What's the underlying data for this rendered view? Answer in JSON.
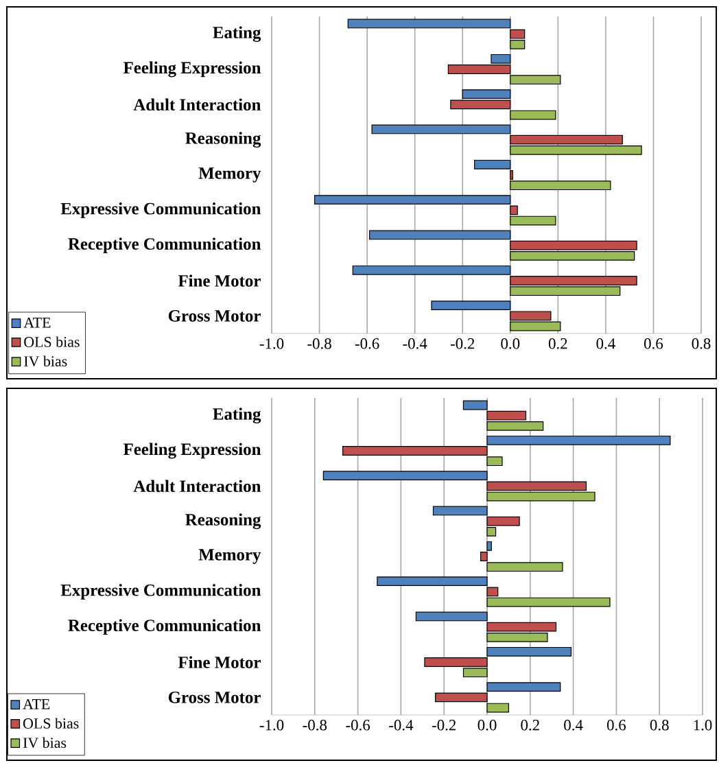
{
  "chart_data": [
    {
      "type": "bar",
      "orientation": "horizontal",
      "categories": [
        "Eating",
        "Feeling Expression",
        "Adult Interaction",
        "Reasoning",
        "Memory",
        "Expressive Communication",
        "Receptive Communication",
        "Fine Motor",
        "Gross Motor"
      ],
      "series": [
        {
          "name": "ATE",
          "color": "#4f81bd",
          "values": [
            -0.68,
            -0.08,
            -0.2,
            -0.58,
            -0.15,
            -0.82,
            -0.59,
            -0.66,
            -0.33
          ]
        },
        {
          "name": "OLS bias",
          "color": "#c0504d",
          "values": [
            0.06,
            -0.26,
            -0.25,
            0.47,
            0.01,
            0.03,
            0.53,
            0.53,
            0.17
          ]
        },
        {
          "name": "IV bias",
          "color": "#9bbb59",
          "values": [
            0.06,
            0.21,
            0.19,
            0.55,
            0.42,
            0.19,
            0.52,
            0.46,
            0.21
          ]
        }
      ],
      "xlim": [
        -1.0,
        0.8
      ],
      "xticks": [
        {
          "value": -1.0,
          "label": "-1.0"
        },
        {
          "value": -0.8,
          "label": "-0.8"
        },
        {
          "value": -0.6,
          "label": "-0.6"
        },
        {
          "value": -0.4,
          "label": "-0.4"
        },
        {
          "value": -0.2,
          "label": "-0.2"
        },
        {
          "value": 0.0,
          "label": "0.0"
        },
        {
          "value": 0.2,
          "label": "0.2"
        },
        {
          "value": 0.4,
          "label": "0.4"
        },
        {
          "value": 0.6,
          "label": "0.6"
        },
        {
          "value": 0.8,
          "label": "0.8"
        }
      ],
      "grid": "x",
      "legend": "bottom left"
    },
    {
      "type": "bar",
      "orientation": "horizontal",
      "categories": [
        "Eating",
        "Feeling Expression",
        "Adult Interaction",
        "Reasoning",
        "Memory",
        "Expressive Communication",
        "Receptive Communication",
        "Fine Motor",
        "Gross Motor"
      ],
      "series": [
        {
          "name": "ATE",
          "color": "#4f81bd",
          "values": [
            -0.11,
            0.85,
            -0.76,
            -0.25,
            0.02,
            -0.51,
            -0.33,
            0.39,
            0.34
          ]
        },
        {
          "name": "OLS bias",
          "color": "#c0504d",
          "values": [
            0.18,
            -0.67,
            0.46,
            0.15,
            -0.03,
            0.05,
            0.32,
            -0.29,
            -0.24
          ]
        },
        {
          "name": "IV bias",
          "color": "#9bbb59",
          "values": [
            0.26,
            0.07,
            0.5,
            0.04,
            0.35,
            0.57,
            0.28,
            -0.11,
            0.1
          ]
        }
      ],
      "xlim": [
        -1.0,
        1.0
      ],
      "xticks": [
        {
          "value": -1.0,
          "label": "-1.0"
        },
        {
          "value": -0.8,
          "label": "-0.8"
        },
        {
          "value": -0.6,
          "label": "-0.6"
        },
        {
          "value": -0.4,
          "label": "-0.4"
        },
        {
          "value": -0.2,
          "label": "-0.2"
        },
        {
          "value": 0.0,
          "label": "0.0"
        },
        {
          "value": 0.2,
          "label": "0.2"
        },
        {
          "value": 0.4,
          "label": "0.4"
        },
        {
          "value": 0.6,
          "label": "0.6"
        },
        {
          "value": 0.8,
          "label": "0.8"
        },
        {
          "value": 1.0,
          "label": "1.0"
        }
      ],
      "grid": "x",
      "legend": "bottom left"
    }
  ]
}
